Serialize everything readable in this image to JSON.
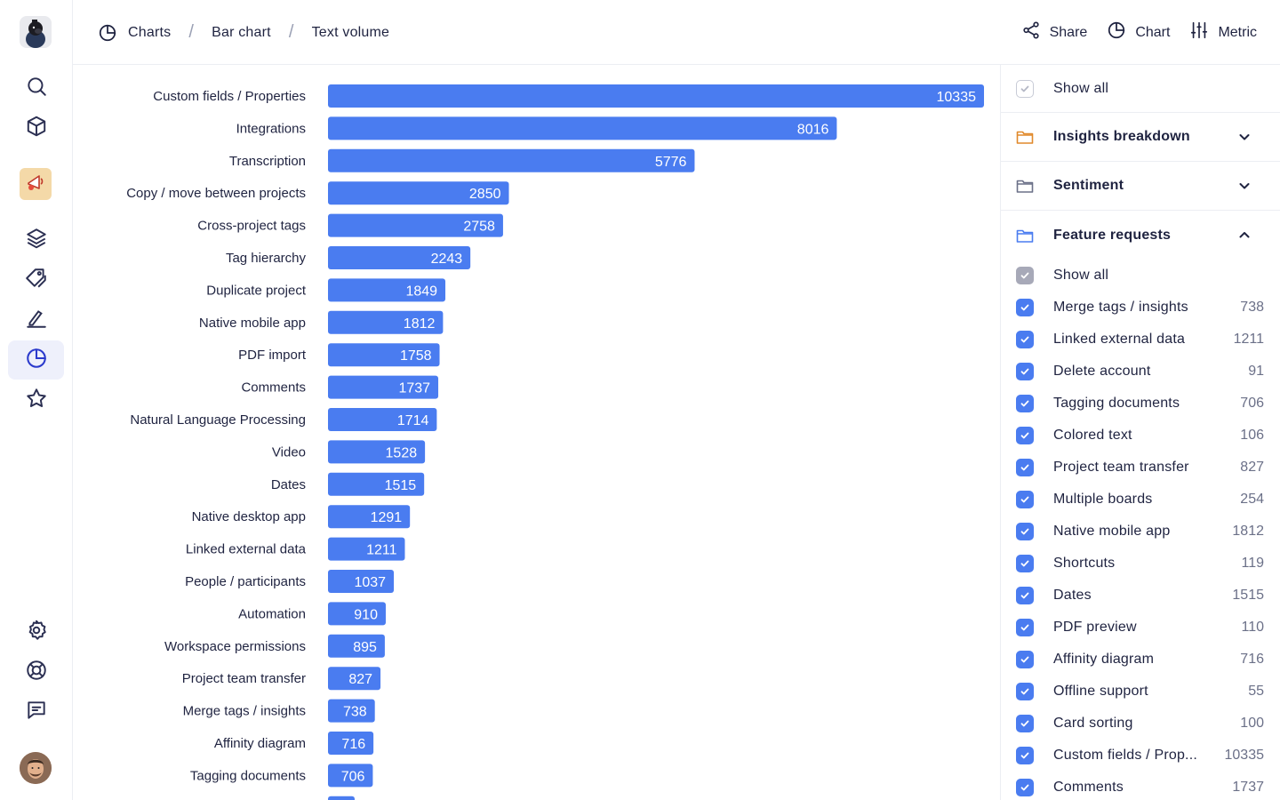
{
  "header": {
    "breadcrumbs": [
      "Charts",
      "Bar chart",
      "Text volume"
    ],
    "actions": {
      "share": "Share",
      "chart": "Chart",
      "metric": "Metric"
    }
  },
  "sidebar": {
    "icons": [
      "search-icon",
      "cube-icon",
      "project-icon",
      "layers-icon",
      "tags-icon",
      "signature-icon",
      "chart-icon",
      "star-icon",
      "settings-icon",
      "help-icon",
      "feedback-icon"
    ],
    "active": "chart-icon"
  },
  "chart_data": {
    "type": "bar",
    "orientation": "horizontal",
    "color": "#4a7cf0",
    "categories": [
      "Custom fields / Properties",
      "Integrations",
      "Transcription",
      "Copy / move between projects",
      "Cross-project tags",
      "Tag hierarchy",
      "Duplicate project",
      "Native mobile app",
      "PDF import",
      "Comments",
      "Natural Language Processing",
      "Video",
      "Dates",
      "Native desktop app",
      "Linked external data",
      "People / participants",
      "Automation",
      "Workspace permissions",
      "Project team transfer",
      "Merge tags / insights",
      "Affinity diagram",
      "Tagging documents"
    ],
    "values": [
      10335,
      8016,
      5776,
      2850,
      2758,
      2243,
      1849,
      1812,
      1758,
      1737,
      1714,
      1528,
      1515,
      1291,
      1211,
      1037,
      910,
      895,
      827,
      738,
      716,
      706
    ]
  },
  "panel": {
    "show_all_top": "Show all",
    "sections": [
      {
        "title": "Insights breakdown",
        "expanded": false,
        "color": "#e0892b"
      },
      {
        "title": "Sentiment",
        "expanded": false,
        "color": "#6b7088"
      },
      {
        "title": "Feature requests",
        "expanded": true,
        "color": "#4a7cf0"
      }
    ],
    "feature_show_all": "Show all",
    "items": [
      {
        "label": "Merge tags / insights",
        "count": "738"
      },
      {
        "label": "Linked external data",
        "count": "1211"
      },
      {
        "label": "Delete account",
        "count": "91"
      },
      {
        "label": "Tagging documents",
        "count": "706"
      },
      {
        "label": "Colored text",
        "count": "106"
      },
      {
        "label": "Project team transfer",
        "count": "827"
      },
      {
        "label": "Multiple boards",
        "count": "254"
      },
      {
        "label": "Native mobile app",
        "count": "1812"
      },
      {
        "label": "Shortcuts",
        "count": "119"
      },
      {
        "label": "Dates",
        "count": "1515"
      },
      {
        "label": "PDF preview",
        "count": "110"
      },
      {
        "label": "Affinity diagram",
        "count": "716"
      },
      {
        "label": "Offline support",
        "count": "55"
      },
      {
        "label": "Card sorting",
        "count": "100"
      },
      {
        "label": "Custom fields / Prop...",
        "count": "10335"
      },
      {
        "label": "Comments",
        "count": "1737"
      }
    ]
  }
}
